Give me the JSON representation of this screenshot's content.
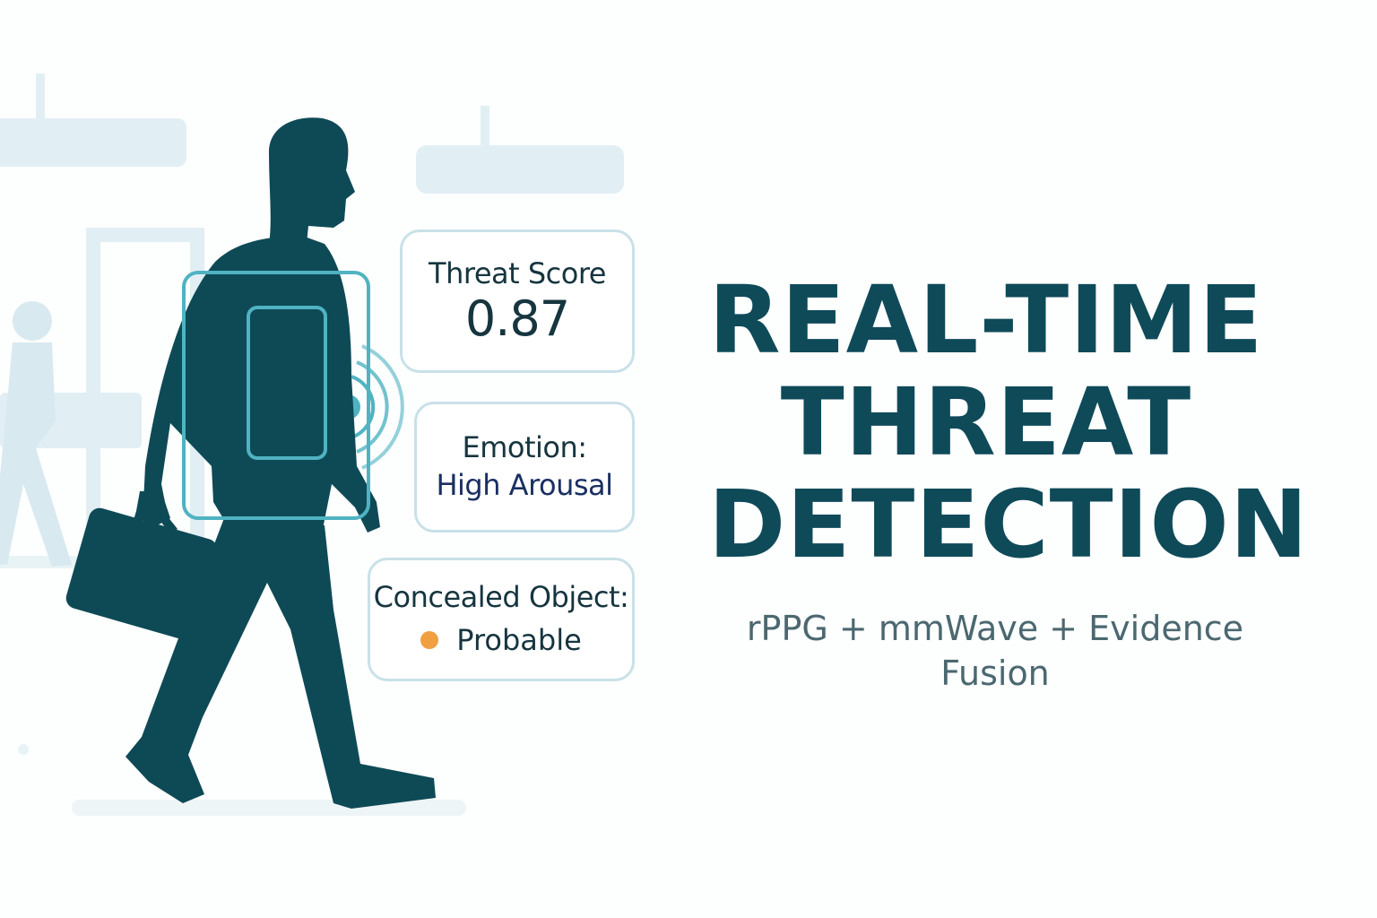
{
  "cards": {
    "threat": {
      "title": "Threat Score",
      "value": "0.87"
    },
    "emotion": {
      "title": "Emotion:",
      "value": "High Arousal"
    },
    "concealed": {
      "title": "Concealed Object:",
      "value": "Probable",
      "status_color": "#f0a040"
    }
  },
  "headline": {
    "line1": "REAL-TIME",
    "line2": "THREAT",
    "line3": "DETECTION"
  },
  "subtitle": "rPPG + mmWave + Evidence Fusion",
  "colors": {
    "primary": "#0f4a59",
    "silhouette": "#0e4a56",
    "scan_box": "#4fb3c2",
    "background_shapes": "#e1eff4",
    "card_border": "#c9e1e8"
  },
  "icons": {
    "figure": "walking-man-with-briefcase",
    "sensor": "radar-wave-icon"
  }
}
